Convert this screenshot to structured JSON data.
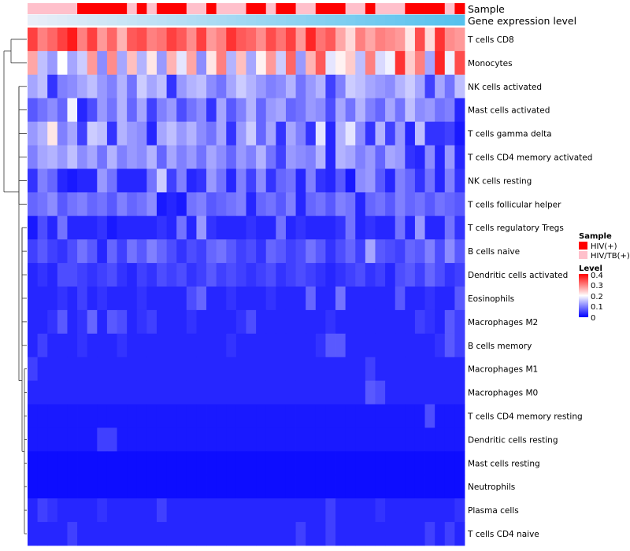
{
  "chart_data": {
    "type": "heatmap",
    "title": "",
    "annotations": {
      "sample_label": "Sample",
      "expression_label": "Gene expression level"
    },
    "rows": [
      "T cells CD8",
      "Monocytes",
      "NK cells activated",
      "Mast cells activated",
      "T cells gamma delta",
      "T cells CD4 memory activated",
      "NK cells resting",
      "T cells follicular helper",
      "T cells regulatory  Tregs",
      "B cells naive",
      "Dendritic cells activated",
      "Eosinophils",
      "Macrophages M2",
      "B cells memory",
      "Macrophages M1",
      "Macrophages M0",
      "T cells CD4 memory resting",
      "Dendritic cells resting",
      "Mast cells resting",
      "Neutrophils",
      "Plasma cells",
      "T cells CD4 naive"
    ],
    "n_samples": 44,
    "sample_groups": [
      "HIV/TB(+)",
      "HIV/TB(+)",
      "HIV/TB(+)",
      "HIV/TB(+)",
      "HIV/TB(+)",
      "HIV(+)",
      "HIV(+)",
      "HIV(+)",
      "HIV(+)",
      "HIV(+)",
      "HIV/TB(+)",
      "HIV(+)",
      "HIV/TB(+)",
      "HIV(+)",
      "HIV(+)",
      "HIV(+)",
      "HIV/TB(+)",
      "HIV/TB(+)",
      "HIV(+)",
      "HIV/TB(+)",
      "HIV/TB(+)",
      "HIV/TB(+)",
      "HIV(+)",
      "HIV(+)",
      "HIV/TB(+)",
      "HIV(+)",
      "HIV(+)",
      "HIV/TB(+)",
      "HIV/TB(+)",
      "HIV(+)",
      "HIV(+)",
      "HIV(+)",
      "HIV/TB(+)",
      "HIV/TB(+)",
      "HIV(+)",
      "HIV/TB(+)",
      "HIV/TB(+)",
      "HIV/TB(+)",
      "HIV(+)",
      "HIV(+)",
      "HIV(+)",
      "HIV(+)",
      "HIV/TB(+)",
      "HIV(+)"
    ],
    "expression_gradient": [
      "#e9eef8",
      "#56c1ed"
    ],
    "legend": {
      "sample_title": "Sample",
      "groups": [
        {
          "name": "HIV(+)",
          "color": "#ff0000"
        },
        {
          "name": "HIV/TB(+)",
          "color": "#ffc0cb"
        }
      ],
      "level_title": "Level",
      "level_ticks": [
        "0.4",
        "0.3",
        "0.2",
        "0.1",
        "0"
      ]
    },
    "color_scale": {
      "min": 0,
      "max": 0.4,
      "low": "#0000ff",
      "mid": "#ffffff",
      "high": "#ff0000",
      "mid_value": 0.2
    },
    "matrix": [
      [
        0.35,
        0.3,
        0.32,
        0.35,
        0.38,
        0.3,
        0.35,
        0.28,
        0.32,
        0.26,
        0.33,
        0.34,
        0.3,
        0.31,
        0.35,
        0.33,
        0.29,
        0.35,
        0.28,
        0.3,
        0.36,
        0.33,
        0.32,
        0.29,
        0.34,
        0.31,
        0.35,
        0.28,
        0.37,
        0.31,
        0.33,
        0.27,
        0.23,
        0.3,
        0.27,
        0.3,
        0.29,
        0.28,
        0.22,
        0.34,
        0.23,
        0.36,
        0.29,
        0.28
      ],
      [
        0.27,
        0.15,
        0.12,
        0.2,
        0.13,
        0.16,
        0.28,
        0.11,
        0.29,
        0.13,
        0.25,
        0.14,
        0.22,
        0.12,
        0.26,
        0.18,
        0.27,
        0.11,
        0.22,
        0.3,
        0.14,
        0.25,
        0.13,
        0.21,
        0.28,
        0.16,
        0.32,
        0.12,
        0.26,
        0.33,
        0.18,
        0.21,
        0.24,
        0.15,
        0.3,
        0.17,
        0.19,
        0.36,
        0.24,
        0.3,
        0.13,
        0.37,
        0.19,
        0.34
      ],
      [
        0.13,
        0.15,
        0.04,
        0.1,
        0.11,
        0.13,
        0.15,
        0.12,
        0.1,
        0.14,
        0.09,
        0.16,
        0.13,
        0.15,
        0.04,
        0.12,
        0.14,
        0.15,
        0.11,
        0.09,
        0.13,
        0.16,
        0.14,
        0.12,
        0.1,
        0.11,
        0.14,
        0.09,
        0.12,
        0.14,
        0.05,
        0.1,
        0.16,
        0.15,
        0.13,
        0.12,
        0.11,
        0.14,
        0.16,
        0.13,
        0.05,
        0.13,
        0.09,
        0.15
      ],
      [
        0.07,
        0.09,
        0.11,
        0.08,
        0.19,
        0.03,
        0.06,
        0.12,
        0.09,
        0.14,
        0.08,
        0.13,
        0.05,
        0.1,
        0.12,
        0.06,
        0.09,
        0.11,
        0.04,
        0.13,
        0.07,
        0.1,
        0.14,
        0.08,
        0.12,
        0.13,
        0.08,
        0.09,
        0.12,
        0.11,
        0.06,
        0.13,
        0.09,
        0.14,
        0.1,
        0.08,
        0.13,
        0.09,
        0.15,
        0.11,
        0.12,
        0.09,
        0.1,
        0.03
      ],
      [
        0.12,
        0.14,
        0.22,
        0.1,
        0.13,
        0.05,
        0.16,
        0.15,
        0.04,
        0.14,
        0.12,
        0.11,
        0.03,
        0.13,
        0.15,
        0.12,
        0.14,
        0.11,
        0.09,
        0.13,
        0.04,
        0.12,
        0.16,
        0.08,
        0.13,
        0.04,
        0.13,
        0.1,
        0.04,
        0.18,
        0.03,
        0.14,
        0.18,
        0.11,
        0.04,
        0.14,
        0.05,
        0.12,
        0.03,
        0.15,
        0.04,
        0.04,
        0.05,
        0.02
      ],
      [
        0.1,
        0.13,
        0.14,
        0.12,
        0.15,
        0.11,
        0.13,
        0.09,
        0.14,
        0.1,
        0.12,
        0.11,
        0.14,
        0.08,
        0.13,
        0.1,
        0.12,
        0.09,
        0.13,
        0.11,
        0.08,
        0.12,
        0.1,
        0.14,
        0.09,
        0.05,
        0.12,
        0.11,
        0.1,
        0.14,
        0.03,
        0.14,
        0.13,
        0.1,
        0.12,
        0.08,
        0.13,
        0.12,
        0.04,
        0.03,
        0.11,
        0.03,
        0.12,
        0.03
      ],
      [
        0.04,
        0.1,
        0.08,
        0.03,
        0.02,
        0.03,
        0.03,
        0.12,
        0.09,
        0.03,
        0.03,
        0.03,
        0.09,
        0.16,
        0.05,
        0.1,
        0.03,
        0.04,
        0.12,
        0.09,
        0.03,
        0.1,
        0.05,
        0.11,
        0.04,
        0.08,
        0.09,
        0.03,
        0.1,
        0.04,
        0.03,
        0.07,
        0.02,
        0.11,
        0.12,
        0.07,
        0.03,
        0.1,
        0.08,
        0.04,
        0.09,
        0.03,
        0.1,
        0.04
      ],
      [
        0.08,
        0.09,
        0.11,
        0.07,
        0.09,
        0.1,
        0.08,
        0.09,
        0.07,
        0.1,
        0.08,
        0.09,
        0.11,
        0.02,
        0.03,
        0.02,
        0.09,
        0.1,
        0.07,
        0.08,
        0.09,
        0.1,
        0.03,
        0.08,
        0.09,
        0.07,
        0.1,
        0.03,
        0.08,
        0.09,
        0.07,
        0.1,
        0.09,
        0.03,
        0.08,
        0.09,
        0.07,
        0.1,
        0.08,
        0.09,
        0.07,
        0.09,
        0.08,
        0.07
      ],
      [
        0.02,
        0.06,
        0.03,
        0.09,
        0.03,
        0.03,
        0.03,
        0.04,
        0.02,
        0.03,
        0.03,
        0.03,
        0.03,
        0.04,
        0.03,
        0.09,
        0.03,
        0.12,
        0.04,
        0.03,
        0.03,
        0.03,
        0.04,
        0.03,
        0.03,
        0.09,
        0.03,
        0.04,
        0.03,
        0.03,
        0.03,
        0.04,
        0.09,
        0.03,
        0.04,
        0.03,
        0.03,
        0.09,
        0.03,
        0.12,
        0.03,
        0.03,
        0.09,
        0.04
      ],
      [
        0.05,
        0.07,
        0.05,
        0.04,
        0.06,
        0.09,
        0.07,
        0.03,
        0.08,
        0.05,
        0.09,
        0.07,
        0.1,
        0.08,
        0.06,
        0.04,
        0.06,
        0.05,
        0.08,
        0.09,
        0.07,
        0.05,
        0.06,
        0.04,
        0.08,
        0.07,
        0.05,
        0.06,
        0.09,
        0.07,
        0.04,
        0.06,
        0.08,
        0.05,
        0.13,
        0.07,
        0.06,
        0.05,
        0.08,
        0.07,
        0.1,
        0.06,
        0.11,
        0.07
      ],
      [
        0.03,
        0.04,
        0.03,
        0.06,
        0.06,
        0.05,
        0.04,
        0.05,
        0.06,
        0.04,
        0.03,
        0.05,
        0.04,
        0.06,
        0.05,
        0.06,
        0.04,
        0.05,
        0.07,
        0.05,
        0.06,
        0.05,
        0.04,
        0.05,
        0.06,
        0.04,
        0.05,
        0.06,
        0.05,
        0.04,
        0.03,
        0.04,
        0.05,
        0.06,
        0.04,
        0.05,
        0.03,
        0.06,
        0.07,
        0.05,
        0.08,
        0.06,
        0.04,
        0.05
      ],
      [
        0.03,
        0.03,
        0.03,
        0.04,
        0.03,
        0.05,
        0.03,
        0.04,
        0.03,
        0.03,
        0.03,
        0.04,
        0.03,
        0.03,
        0.03,
        0.03,
        0.06,
        0.08,
        0.03,
        0.03,
        0.04,
        0.03,
        0.03,
        0.03,
        0.04,
        0.03,
        0.03,
        0.03,
        0.08,
        0.03,
        0.03,
        0.09,
        0.03,
        0.03,
        0.03,
        0.03,
        0.03,
        0.07,
        0.03,
        0.03,
        0.04,
        0.03,
        0.03,
        0.07
      ],
      [
        0.03,
        0.03,
        0.04,
        0.07,
        0.03,
        0.04,
        0.08,
        0.03,
        0.07,
        0.06,
        0.03,
        0.04,
        0.05,
        0.03,
        0.03,
        0.03,
        0.04,
        0.03,
        0.03,
        0.03,
        0.03,
        0.04,
        0.06,
        0.03,
        0.03,
        0.03,
        0.03,
        0.03,
        0.03,
        0.03,
        0.04,
        0.03,
        0.03,
        0.03,
        0.03,
        0.03,
        0.03,
        0.03,
        0.03,
        0.05,
        0.04,
        0.03,
        0.07,
        0.05
      ],
      [
        0.03,
        0.05,
        0.03,
        0.03,
        0.03,
        0.04,
        0.03,
        0.03,
        0.03,
        0.04,
        0.03,
        0.03,
        0.03,
        0.03,
        0.03,
        0.03,
        0.03,
        0.03,
        0.03,
        0.03,
        0.04,
        0.03,
        0.03,
        0.03,
        0.03,
        0.03,
        0.03,
        0.03,
        0.03,
        0.04,
        0.07,
        0.07,
        0.03,
        0.03,
        0.03,
        0.03,
        0.03,
        0.03,
        0.03,
        0.03,
        0.03,
        0.04,
        0.07,
        0.05
      ],
      [
        0.05,
        0.03,
        0.03,
        0.03,
        0.03,
        0.03,
        0.03,
        0.03,
        0.03,
        0.03,
        0.03,
        0.03,
        0.03,
        0.03,
        0.03,
        0.03,
        0.03,
        0.03,
        0.03,
        0.03,
        0.03,
        0.03,
        0.03,
        0.03,
        0.03,
        0.03,
        0.03,
        0.03,
        0.03,
        0.03,
        0.03,
        0.03,
        0.03,
        0.03,
        0.05,
        0.03,
        0.03,
        0.03,
        0.03,
        0.03,
        0.03,
        0.03,
        0.03,
        0.03
      ],
      [
        0.03,
        0.03,
        0.03,
        0.03,
        0.03,
        0.03,
        0.03,
        0.03,
        0.03,
        0.03,
        0.03,
        0.03,
        0.03,
        0.03,
        0.03,
        0.03,
        0.03,
        0.03,
        0.03,
        0.03,
        0.03,
        0.03,
        0.03,
        0.03,
        0.03,
        0.03,
        0.03,
        0.03,
        0.03,
        0.03,
        0.03,
        0.03,
        0.03,
        0.03,
        0.07,
        0.06,
        0.03,
        0.03,
        0.03,
        0.03,
        0.03,
        0.03,
        0.03,
        0.03
      ],
      [
        0.02,
        0.02,
        0.02,
        0.02,
        0.02,
        0.02,
        0.02,
        0.02,
        0.02,
        0.02,
        0.02,
        0.02,
        0.02,
        0.02,
        0.02,
        0.02,
        0.02,
        0.02,
        0.02,
        0.02,
        0.02,
        0.02,
        0.02,
        0.02,
        0.02,
        0.02,
        0.02,
        0.02,
        0.02,
        0.02,
        0.02,
        0.02,
        0.02,
        0.02,
        0.02,
        0.02,
        0.02,
        0.02,
        0.02,
        0.02,
        0.06,
        0.02,
        0.02,
        0.02
      ],
      [
        0.02,
        0.02,
        0.02,
        0.02,
        0.02,
        0.02,
        0.02,
        0.05,
        0.05,
        0.02,
        0.02,
        0.02,
        0.02,
        0.02,
        0.02,
        0.02,
        0.02,
        0.02,
        0.02,
        0.02,
        0.02,
        0.02,
        0.02,
        0.02,
        0.02,
        0.02,
        0.02,
        0.02,
        0.02,
        0.02,
        0.02,
        0.02,
        0.02,
        0.02,
        0.02,
        0.02,
        0.02,
        0.02,
        0.02,
        0.02,
        0.02,
        0.02,
        0.02,
        0.02
      ],
      [
        0.01,
        0.01,
        0.01,
        0.01,
        0.01,
        0.01,
        0.01,
        0.01,
        0.01,
        0.01,
        0.01,
        0.01,
        0.01,
        0.01,
        0.01,
        0.01,
        0.01,
        0.01,
        0.01,
        0.01,
        0.01,
        0.01,
        0.01,
        0.01,
        0.01,
        0.01,
        0.01,
        0.01,
        0.01,
        0.01,
        0.01,
        0.01,
        0.01,
        0.01,
        0.01,
        0.01,
        0.01,
        0.01,
        0.01,
        0.01,
        0.01,
        0.01,
        0.01,
        0.01
      ],
      [
        0.01,
        0.01,
        0.01,
        0.01,
        0.01,
        0.01,
        0.01,
        0.01,
        0.01,
        0.01,
        0.01,
        0.01,
        0.01,
        0.01,
        0.01,
        0.01,
        0.01,
        0.01,
        0.01,
        0.01,
        0.01,
        0.01,
        0.01,
        0.01,
        0.01,
        0.01,
        0.01,
        0.01,
        0.01,
        0.01,
        0.01,
        0.01,
        0.01,
        0.01,
        0.01,
        0.01,
        0.01,
        0.01,
        0.01,
        0.01,
        0.01,
        0.01,
        0.01,
        0.01
      ],
      [
        0.03,
        0.05,
        0.04,
        0.03,
        0.03,
        0.03,
        0.03,
        0.04,
        0.03,
        0.03,
        0.03,
        0.03,
        0.03,
        0.05,
        0.03,
        0.03,
        0.03,
        0.03,
        0.03,
        0.03,
        0.03,
        0.03,
        0.03,
        0.03,
        0.03,
        0.03,
        0.03,
        0.03,
        0.03,
        0.03,
        0.05,
        0.03,
        0.03,
        0.03,
        0.03,
        0.04,
        0.03,
        0.03,
        0.03,
        0.03,
        0.03,
        0.03,
        0.03,
        0.04
      ],
      [
        0.03,
        0.03,
        0.03,
        0.03,
        0.05,
        0.03,
        0.03,
        0.03,
        0.03,
        0.03,
        0.03,
        0.03,
        0.03,
        0.03,
        0.03,
        0.03,
        0.03,
        0.03,
        0.03,
        0.03,
        0.03,
        0.03,
        0.03,
        0.03,
        0.03,
        0.03,
        0.03,
        0.05,
        0.03,
        0.03,
        0.05,
        0.03,
        0.03,
        0.03,
        0.03,
        0.03,
        0.03,
        0.03,
        0.03,
        0.03,
        0.05,
        0.03,
        0.05,
        0.03
      ]
    ]
  }
}
